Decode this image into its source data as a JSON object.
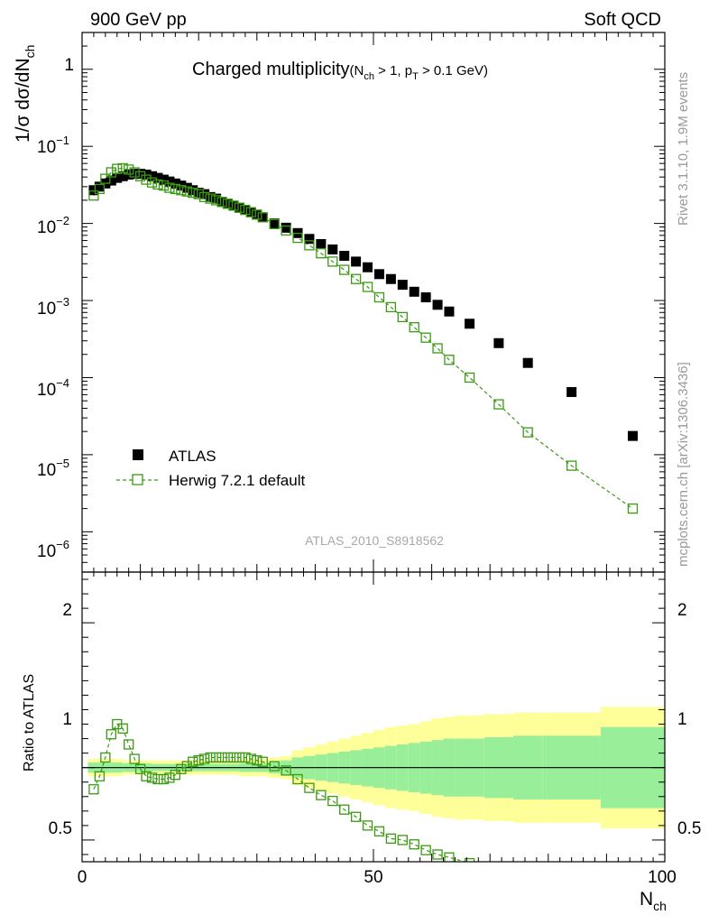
{
  "header": {
    "left": "900 GeV pp",
    "right": "Soft QCD"
  },
  "side": {
    "rivet": "Rivet 3.1.10,  1.9M events",
    "mcplots": "mcplots.cern.ch [arXiv:1306.3436]"
  },
  "watermark": "ATLAS_2010_S8918562",
  "colors": {
    "data": "#000000",
    "mc": "#3a9a12",
    "band_inner": "#99ee99",
    "band_outer": "#ffff99"
  },
  "chart_data": [
    {
      "type": "scatter",
      "title": "Charged multiplicity",
      "title_sub": {
        "prefix": "(N",
        "sub1": "ch",
        "mid": " > 1, p",
        "sub2": "T",
        "suffix": " > 0.1 GeV)"
      },
      "ylabel": {
        "main": "1/σ dσ/dN",
        "sub": "ch"
      },
      "yscale": "log",
      "ylim": [
        3e-07,
        3
      ],
      "ytick_labels": [
        {
          "base": "1",
          "exp": "",
          "value": 1
        },
        {
          "base": "10",
          "exp": "−1",
          "value": 0.1
        },
        {
          "base": "10",
          "exp": "−2",
          "value": 0.01
        },
        {
          "base": "10",
          "exp": "−3",
          "value": 0.001
        },
        {
          "base": "10",
          "exp": "−4",
          "value": 0.0001
        },
        {
          "base": "10",
          "exp": "−5",
          "value": 1e-05
        },
        {
          "base": "10",
          "exp": "−6",
          "value": 1e-06
        }
      ],
      "xlim": [
        0,
        100
      ],
      "legend": {
        "position": "bottom-left",
        "entries": [
          "ATLAS",
          "Herwig 7.2.1 default"
        ]
      },
      "series": [
        {
          "name": "ATLAS",
          "marker": "filled-square",
          "x": [
            2,
            3,
            4,
            5,
            6,
            7,
            8,
            9,
            10,
            11,
            12,
            13,
            14,
            15,
            16,
            17,
            18,
            19,
            20,
            21,
            22,
            23,
            24,
            25,
            26,
            27,
            28,
            29,
            30,
            31,
            33,
            35,
            37,
            39,
            41,
            43,
            45,
            47,
            49,
            51,
            53,
            55,
            57,
            59,
            61,
            63,
            66.5,
            71.5,
            76.5,
            84,
            94.5
          ],
          "y": [
            0.027,
            0.03,
            0.033,
            0.036,
            0.039,
            0.041,
            0.043,
            0.044,
            0.044,
            0.043,
            0.041,
            0.039,
            0.037,
            0.035,
            0.033,
            0.031,
            0.029,
            0.027,
            0.025,
            0.024,
            0.022,
            0.021,
            0.019,
            0.018,
            0.017,
            0.016,
            0.015,
            0.014,
            0.013,
            0.012,
            0.01,
            0.0088,
            0.0075,
            0.0063,
            0.0054,
            0.0046,
            0.0038,
            0.0032,
            0.0027,
            0.0022,
            0.0019,
            0.0016,
            0.0013,
            0.0011,
            0.00088,
            0.00072,
            0.0005,
            0.00028,
            0.000155,
            6.5e-05,
            1.75e-05
          ]
        },
        {
          "name": "Herwig 7.2.1 default",
          "marker": "open-square-dashed-line",
          "x": [
            2,
            3,
            4,
            5,
            6,
            7,
            8,
            9,
            10,
            11,
            12,
            13,
            14,
            15,
            16,
            17,
            18,
            19,
            20,
            21,
            22,
            23,
            24,
            25,
            26,
            27,
            28,
            29,
            30,
            31,
            33,
            35,
            37,
            39,
            41,
            43,
            45,
            47,
            49,
            51,
            53,
            55,
            57,
            59,
            61,
            63,
            66.5,
            71.5,
            76.5,
            84,
            94.5
          ],
          "y": [
            0.023,
            0.028,
            0.038,
            0.046,
            0.051,
            0.052,
            0.05,
            0.046,
            0.041,
            0.037,
            0.034,
            0.032,
            0.031,
            0.029,
            0.028,
            0.027,
            0.026,
            0.025,
            0.024,
            0.022,
            0.021,
            0.02,
            0.019,
            0.018,
            0.017,
            0.016,
            0.015,
            0.014,
            0.013,
            0.012,
            0.0098,
            0.0081,
            0.0065,
            0.0052,
            0.0041,
            0.0032,
            0.0025,
            0.0019,
            0.0015,
            0.0011,
            0.00082,
            0.00061,
            0.00045,
            0.00033,
            0.00024,
            0.00017,
            0.0001,
            4.5e-05,
            1.95e-05,
            7.2e-06,
            2e-06
          ]
        }
      ]
    },
    {
      "type": "scatter",
      "ylabel": "Ratio to ATLAS",
      "xlabel": {
        "main": "N",
        "sub": "ch"
      },
      "xlim": [
        0,
        100
      ],
      "xticks": [
        0,
        50,
        100
      ],
      "ylim": [
        0.35,
        2.35
      ],
      "yticks": [
        0.5,
        1,
        2
      ],
      "reference_line": 1,
      "bands": {
        "edges": [
          1,
          7,
          12,
          17,
          22,
          27,
          32,
          34,
          36,
          38,
          40,
          42,
          44,
          46,
          48,
          50,
          52,
          54,
          56,
          58,
          60,
          62,
          64,
          69,
          74,
          79,
          89,
          100
        ],
        "inner": [
          0.035,
          0.03,
          0.025,
          0.025,
          0.025,
          0.03,
          0.04,
          0.05,
          0.07,
          0.08,
          0.09,
          0.1,
          0.11,
          0.12,
          0.13,
          0.14,
          0.15,
          0.16,
          0.17,
          0.18,
          0.19,
          0.2,
          0.2,
          0.21,
          0.22,
          0.22,
          0.28
        ],
        "outer": [
          0.06,
          0.05,
          0.05,
          0.05,
          0.05,
          0.06,
          0.07,
          0.08,
          0.12,
          0.14,
          0.16,
          0.18,
          0.2,
          0.22,
          0.24,
          0.26,
          0.28,
          0.29,
          0.3,
          0.32,
          0.34,
          0.35,
          0.36,
          0.37,
          0.38,
          0.38,
          0.42
        ]
      },
      "series": [
        {
          "name": "Herwig 7.2.1 default",
          "x": [
            2,
            3,
            4,
            5,
            6,
            7,
            8,
            9,
            10,
            11,
            12,
            13,
            14,
            15,
            16,
            17,
            18,
            19,
            20,
            21,
            22,
            23,
            24,
            25,
            26,
            27,
            28,
            29,
            30,
            31,
            33,
            35,
            37,
            39,
            41,
            43,
            45,
            47,
            49,
            51,
            53,
            55,
            57,
            59,
            61,
            63,
            66.5
          ],
          "y": [
            0.85,
            0.94,
            1.07,
            1.23,
            1.3,
            1.27,
            1.16,
            1.06,
            0.99,
            0.94,
            0.93,
            0.92,
            0.92,
            0.93,
            0.95,
            0.99,
            1.01,
            1.04,
            1.05,
            1.06,
            1.07,
            1.07,
            1.07,
            1.07,
            1.07,
            1.07,
            1.07,
            1.06,
            1.05,
            1.04,
            1.01,
            0.98,
            0.92,
            0.86,
            0.81,
            0.77,
            0.71,
            0.66,
            0.6,
            0.56,
            0.51,
            0.5,
            0.47,
            0.43,
            0.4,
            0.38,
            0.34
          ]
        }
      ]
    }
  ]
}
